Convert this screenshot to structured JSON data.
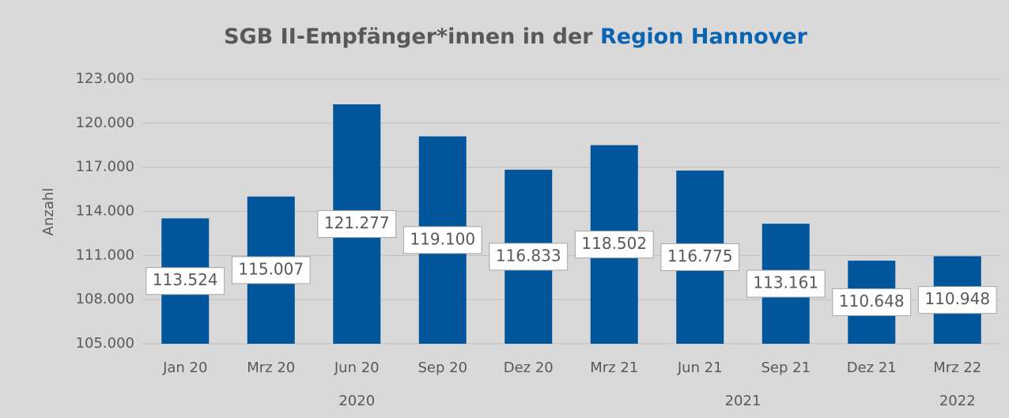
{
  "chart_data": {
    "type": "bar",
    "title": [
      "SGB II-Empfänger*innen in der ",
      "Region Hannover"
    ],
    "title_colors": [
      "#595959",
      "#0a64b4"
    ],
    "y_label": "Anzahl",
    "categories": [
      "Jan 20",
      "Mrz 20",
      "Jun 20",
      "Sep 20",
      "Dez 20",
      "Mrz 21",
      "Jun 21",
      "Sep 21",
      "Dez 21",
      "Mrz 22"
    ],
    "values": [
      113524,
      115007,
      121277,
      119100,
      116833,
      118502,
      116775,
      113161,
      110648,
      110948
    ],
    "value_labels": [
      "113.524",
      "115.007",
      "121.277",
      "119.100",
      "116.833",
      "118.502",
      "116.775",
      "113.161",
      "110.648",
      "110.948"
    ],
    "groups": [
      "2020",
      "2021",
      "2022"
    ],
    "color": "#00559b",
    "ylim": [
      105000,
      123000
    ],
    "yticks": [
      {
        "value": 105000,
        "label": "105.000"
      },
      {
        "value": 108000,
        "label": "108.000"
      },
      {
        "value": 111000,
        "label": "111.000"
      },
      {
        "value": 114000,
        "label": "114.000"
      },
      {
        "value": 117000,
        "label": "117.000"
      },
      {
        "value": 120000,
        "label": "120.000"
      },
      {
        "value": 123000,
        "label": "123.000"
      }
    ],
    "grid": true
  }
}
